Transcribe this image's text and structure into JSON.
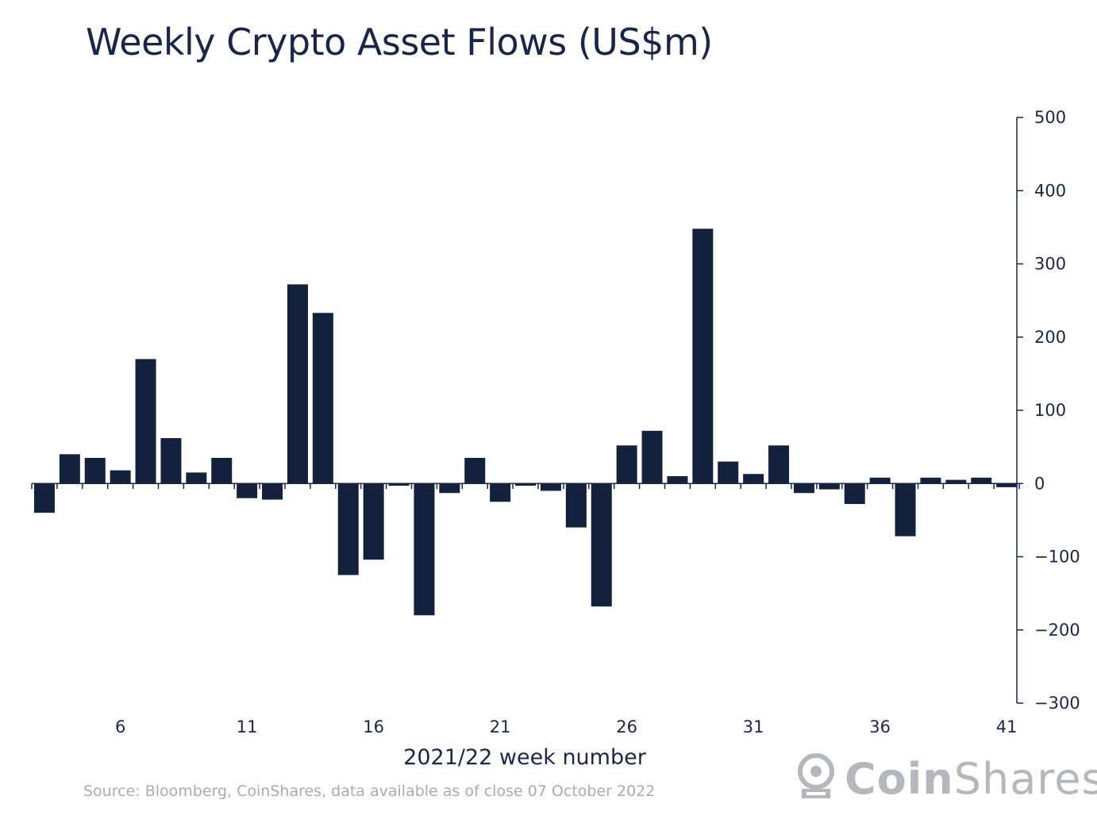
{
  "chart_data": {
    "type": "bar",
    "title": "Weekly Crypto Asset Flows (US$m)",
    "xlabel": "2021/22 week number",
    "ylabel": "",
    "ylim": [
      -300,
      500
    ],
    "yticks": [
      500,
      400,
      300,
      200,
      100,
      0,
      -100,
      -200,
      -300
    ],
    "xtick_labels": [
      "6",
      "11",
      "16",
      "21",
      "26",
      "31",
      "36",
      "41"
    ],
    "categories": [
      3,
      4,
      5,
      6,
      7,
      8,
      9,
      10,
      11,
      12,
      13,
      14,
      15,
      16,
      17,
      18,
      19,
      20,
      21,
      22,
      23,
      24,
      25,
      26,
      27,
      28,
      29,
      30,
      31,
      32,
      33,
      34,
      35,
      36,
      37,
      38,
      39,
      40,
      41
    ],
    "values": [
      -40,
      40,
      35,
      18,
      170,
      62,
      15,
      35,
      -20,
      -22,
      272,
      233,
      -125,
      -104,
      -3,
      -180,
      -13,
      35,
      -25,
      -3,
      -10,
      -60,
      -168,
      52,
      72,
      10,
      348,
      30,
      13,
      52,
      -13,
      -8,
      -28,
      8,
      -72,
      8,
      5,
      8,
      -5
    ],
    "bar_color": "#14213d",
    "y_axis_position": "right",
    "grid": false
  },
  "footer": {
    "source": "Source: Bloomberg, CoinShares, data available as of close 07 October 2022",
    "logo_bold": "Coin",
    "logo_light": "Shares"
  }
}
